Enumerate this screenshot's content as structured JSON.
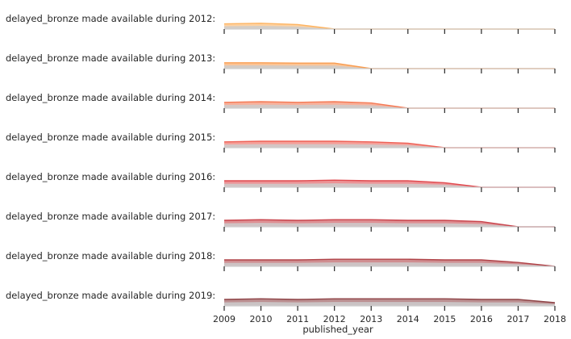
{
  "chart_data": {
    "type": "area",
    "xlabel": "published_year",
    "x_ticks": [
      2009,
      2010,
      2011,
      2012,
      2013,
      2014,
      2015,
      2016,
      2017,
      2018
    ],
    "grid": false,
    "base_color": "#cccccc",
    "panels": [
      {
        "label": "delayed_bronze made available during 2012:",
        "color": "#fdb462",
        "values": [
          0.8,
          0.9,
          0.7,
          0.0,
          0.0,
          0.0,
          0.0,
          0.0,
          0.0,
          0.0
        ]
      },
      {
        "label": "delayed_bronze made available during 2013:",
        "color": "#f99c4f",
        "values": [
          0.9,
          0.9,
          0.85,
          0.85,
          0.0,
          0.0,
          0.0,
          0.0,
          0.0,
          0.0
        ]
      },
      {
        "label": "delayed_bronze made available during 2014:",
        "color": "#f47a55",
        "values": [
          0.9,
          1.0,
          0.9,
          1.0,
          0.8,
          0.0,
          0.0,
          0.0,
          0.0,
          0.0
        ]
      },
      {
        "label": "delayed_bronze made available during 2015:",
        "color": "#ee6055",
        "values": [
          0.9,
          1.0,
          1.0,
          1.0,
          0.9,
          0.7,
          0.0,
          0.0,
          0.0,
          0.0
        ]
      },
      {
        "label": "delayed_bronze made available during 2016:",
        "color": "#e04a4f",
        "values": [
          1.0,
          1.0,
          1.0,
          1.1,
          1.0,
          1.0,
          0.7,
          0.0,
          0.0,
          0.0
        ]
      },
      {
        "label": "delayed_bronze made available during 2017:",
        "color": "#c8424a",
        "values": [
          1.0,
          1.1,
          1.0,
          1.1,
          1.1,
          1.0,
          1.0,
          0.8,
          0.0,
          0.0
        ]
      },
      {
        "label": "delayed_bronze made available during 2018:",
        "color": "#b04348",
        "values": [
          1.0,
          1.0,
          1.0,
          1.1,
          1.1,
          1.1,
          1.0,
          1.0,
          0.6,
          0.0
        ]
      },
      {
        "label": "delayed_bronze made available during 2019:",
        "color": "#8f4447",
        "values": [
          1.0,
          1.1,
          1.0,
          1.1,
          1.1,
          1.1,
          1.1,
          1.0,
          1.0,
          0.5
        ]
      }
    ]
  }
}
